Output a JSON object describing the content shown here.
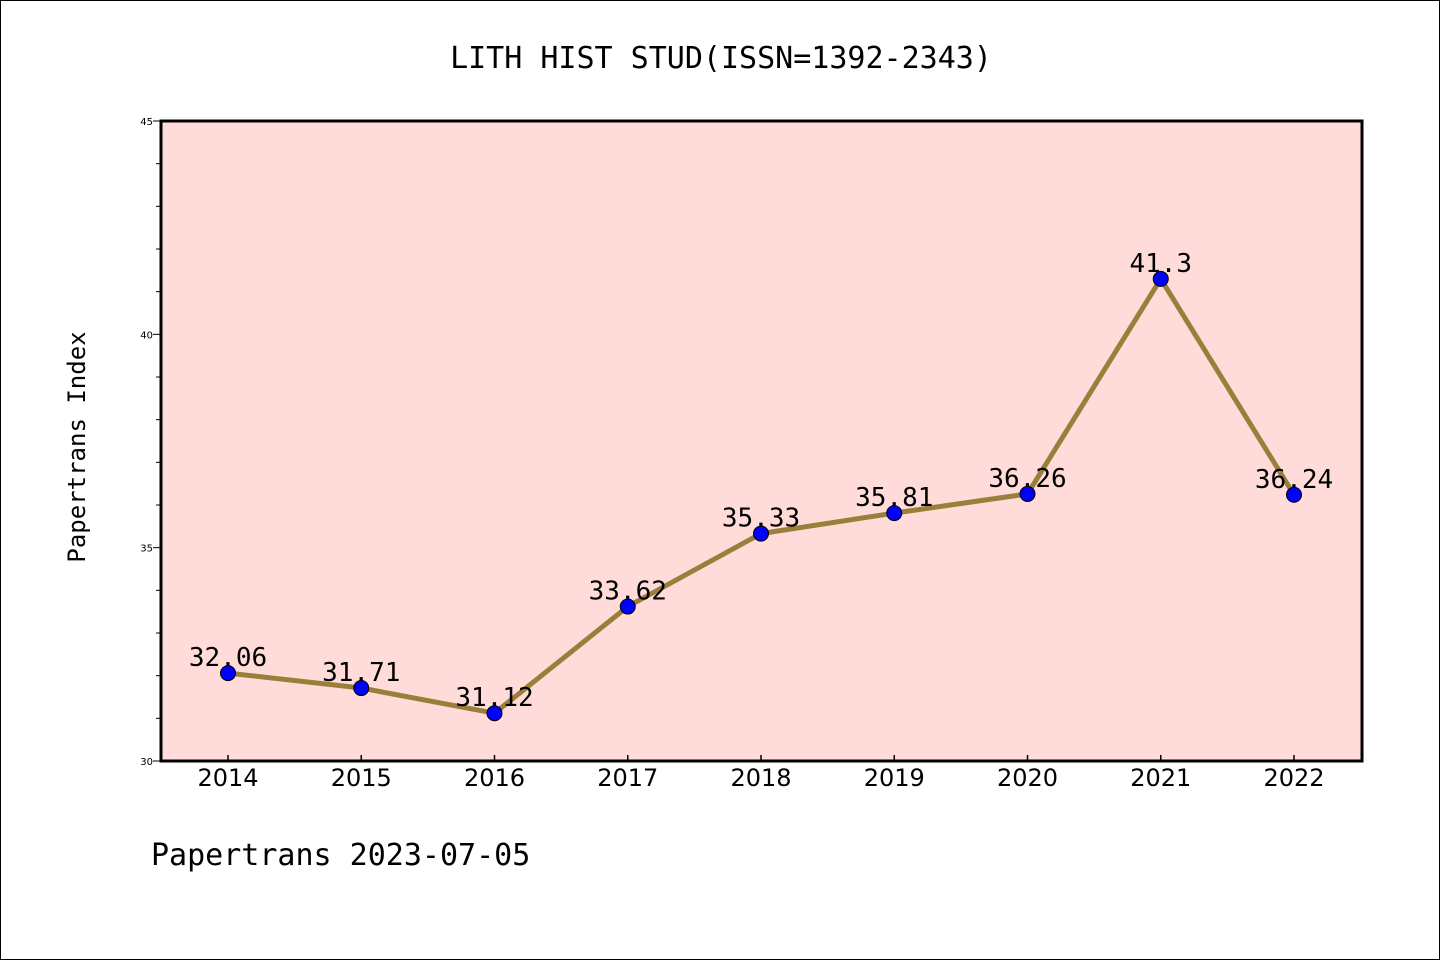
{
  "chart_data": {
    "type": "line",
    "title": "LITH HIST STUD(ISSN=1392-2343)",
    "xlabel": "",
    "ylabel": "Papertrans Index",
    "categories": [
      "2014",
      "2015",
      "2016",
      "2017",
      "2018",
      "2019",
      "2020",
      "2021",
      "2022"
    ],
    "series": [
      {
        "values": [
          32.06,
          31.71,
          31.12,
          33.62,
          35.33,
          35.81,
          36.26,
          41.3,
          36.24
        ],
        "labels": [
          "32.06",
          "31.71",
          "31.12",
          "33.62",
          "35.33",
          "35.81",
          "36.26",
          "41.3",
          "36.24"
        ]
      }
    ],
    "ylim": [
      30,
      45
    ],
    "yticks": [
      "30",
      "35",
      "40",
      "45"
    ],
    "ytick_values": [
      30,
      35,
      40,
      45
    ],
    "grid": false,
    "plot_background": "#FFDCDA",
    "line_color": "#9A7F3B",
    "marker_color": "#0000FF",
    "footer": "Papertrans 2023-07-05"
  }
}
